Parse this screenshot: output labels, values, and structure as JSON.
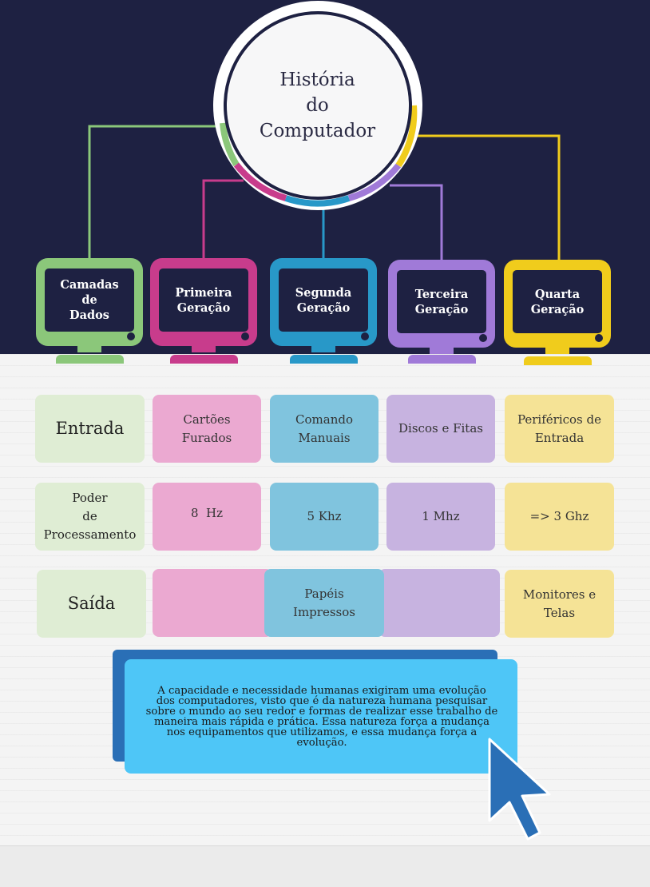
{
  "title_lines": [
    "História",
    "do",
    "Computador"
  ],
  "generations": [
    {
      "lines": [
        "Camadas",
        "de",
        "Dados"
      ],
      "color": "#8bc77a"
    },
    {
      "lines": [
        "Primeira",
        "Geração"
      ],
      "color": "#c83c8c"
    },
    {
      "lines": [
        "Segunda",
        "Geração"
      ],
      "color": "#2898c8"
    },
    {
      "lines": [
        "Terceira",
        "Geração"
      ],
      "color": "#a07ad8"
    },
    {
      "lines": [
        "Quarta",
        "Geração"
      ],
      "color": "#f0cc1c"
    }
  ],
  "rows": {
    "entrada": {
      "label": "Entrada",
      "cells": [
        [
          "Cartões",
          "Furados"
        ],
        [
          "Comando",
          "Manuais"
        ],
        [
          "Discos e Fitas"
        ],
        [
          "Periféricos de",
          "Entrada"
        ]
      ]
    },
    "processamento": {
      "label": [
        "Poder",
        "de",
        "Processamento"
      ],
      "cells": [
        [
          "8  Hz"
        ],
        [
          "5 Khz"
        ],
        [
          "1 Mhz"
        ],
        [
          "=> 3 Ghz"
        ]
      ]
    },
    "saida": {
      "label": "Saída",
      "cells": [
        [
          ""
        ],
        [
          "Papéis",
          "Impressos"
        ],
        [
          ""
        ],
        [
          "Monitores e",
          "Telas"
        ]
      ]
    }
  },
  "cell_colors": {
    "label_bg": "#dfedd4",
    "first_bg": "#eba9d1",
    "second_bg": "#80c4de",
    "third_bg": "#c7b3e0",
    "fourth_bg": "#f5e396"
  },
  "note_lines": [
    "A capacidade e necessidade humanas exigiram uma evolução",
    "dos computadores, visto que é da natureza humana pesquisar",
    "sobre o mundo ao seu redor e formas de realizar esse trabalho de",
    "maneira mais rápida e prática. Essa natureza força a mudança",
    "nos equipamentos que utilizamos, e essa mudança força a",
    "evolução."
  ],
  "icons": [
    "cursor-arrow-icon"
  ]
}
